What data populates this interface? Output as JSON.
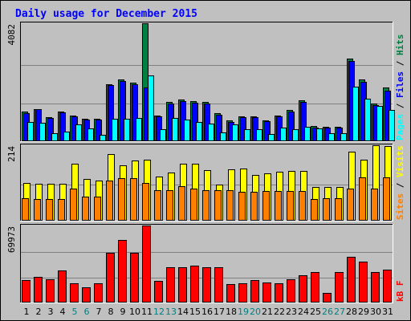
{
  "title": "Daily usage for December 2015",
  "colors": {
    "background": "#c0c0c0",
    "frame": "#ffffff",
    "grid": "#808080",
    "pages": "#00ffff",
    "files": "#0000ff",
    "hits": "#008040",
    "visits": "#ffff00",
    "sites": "#ff8000",
    "kbytes": "#ff0000",
    "weekday_label": "#000000",
    "weekend_label": "#008080"
  },
  "chart_data": [
    {
      "type": "bar",
      "panel": "hits-files-pages",
      "legend": [
        "Pages",
        "Files",
        "Hits"
      ],
      "y_max_label": "4082",
      "ylim": [
        0,
        4082
      ],
      "categories": [
        "1",
        "2",
        "3",
        "4",
        "5",
        "6",
        "7",
        "8",
        "9",
        "10",
        "11",
        "12",
        "13",
        "14",
        "15",
        "16",
        "17",
        "18",
        "19",
        "20",
        "21",
        "22",
        "23",
        "24",
        "25",
        "26",
        "27",
        "28",
        "29",
        "30",
        "31"
      ],
      "series": [
        {
          "name": "Hits",
          "values": [
            1020,
            1100,
            800,
            1020,
            870,
            760,
            760,
            1950,
            2130,
            2020,
            4082,
            880,
            1350,
            1420,
            1380,
            1350,
            940,
            690,
            840,
            840,
            690,
            880,
            1060,
            1390,
            490,
            480,
            480,
            2850,
            2120,
            1300,
            1850
          ]
        },
        {
          "name": "Files",
          "values": [
            950,
            1080,
            790,
            980,
            850,
            740,
            740,
            1920,
            2080,
            1970,
            1850,
            850,
            1300,
            1380,
            1320,
            1300,
            900,
            650,
            800,
            820,
            660,
            850,
            1020,
            1330,
            460,
            460,
            460,
            2760,
            2030,
            1230,
            1730
          ]
        },
        {
          "name": "Pages",
          "values": [
            650,
            610,
            250,
            310,
            560,
            420,
            190,
            750,
            760,
            770,
            2270,
            400,
            790,
            720,
            650,
            580,
            290,
            560,
            380,
            380,
            220,
            450,
            380,
            480,
            430,
            260,
            250,
            1880,
            1460,
            1200,
            1060
          ]
        }
      ]
    },
    {
      "type": "bar",
      "panel": "visits-sites",
      "legend": [
        "Sites",
        "Visits"
      ],
      "y_max_label": "214",
      "ylim": [
        0,
        214
      ],
      "categories": [
        "1",
        "2",
        "3",
        "4",
        "5",
        "6",
        "7",
        "8",
        "9",
        "10",
        "11",
        "12",
        "13",
        "14",
        "15",
        "16",
        "17",
        "18",
        "19",
        "20",
        "21",
        "22",
        "23",
        "24",
        "25",
        "26",
        "27",
        "28",
        "29",
        "30",
        "31"
      ],
      "series": [
        {
          "name": "Visits",
          "values": [
            105,
            103,
            103,
            103,
            162,
            118,
            113,
            188,
            157,
            171,
            172,
            125,
            135,
            160,
            160,
            142,
            102,
            144,
            147,
            130,
            133,
            137,
            140,
            140,
            95,
            95,
            95,
            195,
            172,
            214,
            212
          ]
        },
        {
          "name": "Sites",
          "values": [
            62,
            60,
            60,
            60,
            90,
            66,
            66,
            113,
            120,
            120,
            106,
            85,
            85,
            96,
            90,
            86,
            85,
            84,
            80,
            80,
            82,
            82,
            82,
            82,
            60,
            62,
            62,
            89,
            122,
            90,
            121
          ]
        }
      ]
    },
    {
      "type": "bar",
      "panel": "kbytes",
      "legend": [
        "KBytes"
      ],
      "y_max_label": "69973",
      "ylim": [
        0,
        69973
      ],
      "categories": [
        "1",
        "2",
        "3",
        "4",
        "5",
        "6",
        "7",
        "8",
        "9",
        "10",
        "11",
        "12",
        "13",
        "14",
        "15",
        "16",
        "17",
        "18",
        "19",
        "20",
        "21",
        "22",
        "23",
        "24",
        "25",
        "26",
        "27",
        "28",
        "29",
        "30",
        "31"
      ],
      "series": [
        {
          "name": "KBytes",
          "values": [
            19700,
            23100,
            20800,
            28600,
            17200,
            13100,
            17200,
            44800,
            56900,
            44800,
            69973,
            18900,
            31700,
            31700,
            33100,
            31700,
            31700,
            16500,
            17200,
            19700,
            17900,
            17200,
            20800,
            24200,
            26900,
            8400,
            26900,
            41400,
            36500,
            27600,
            29400
          ]
        }
      ]
    }
  ]
}
